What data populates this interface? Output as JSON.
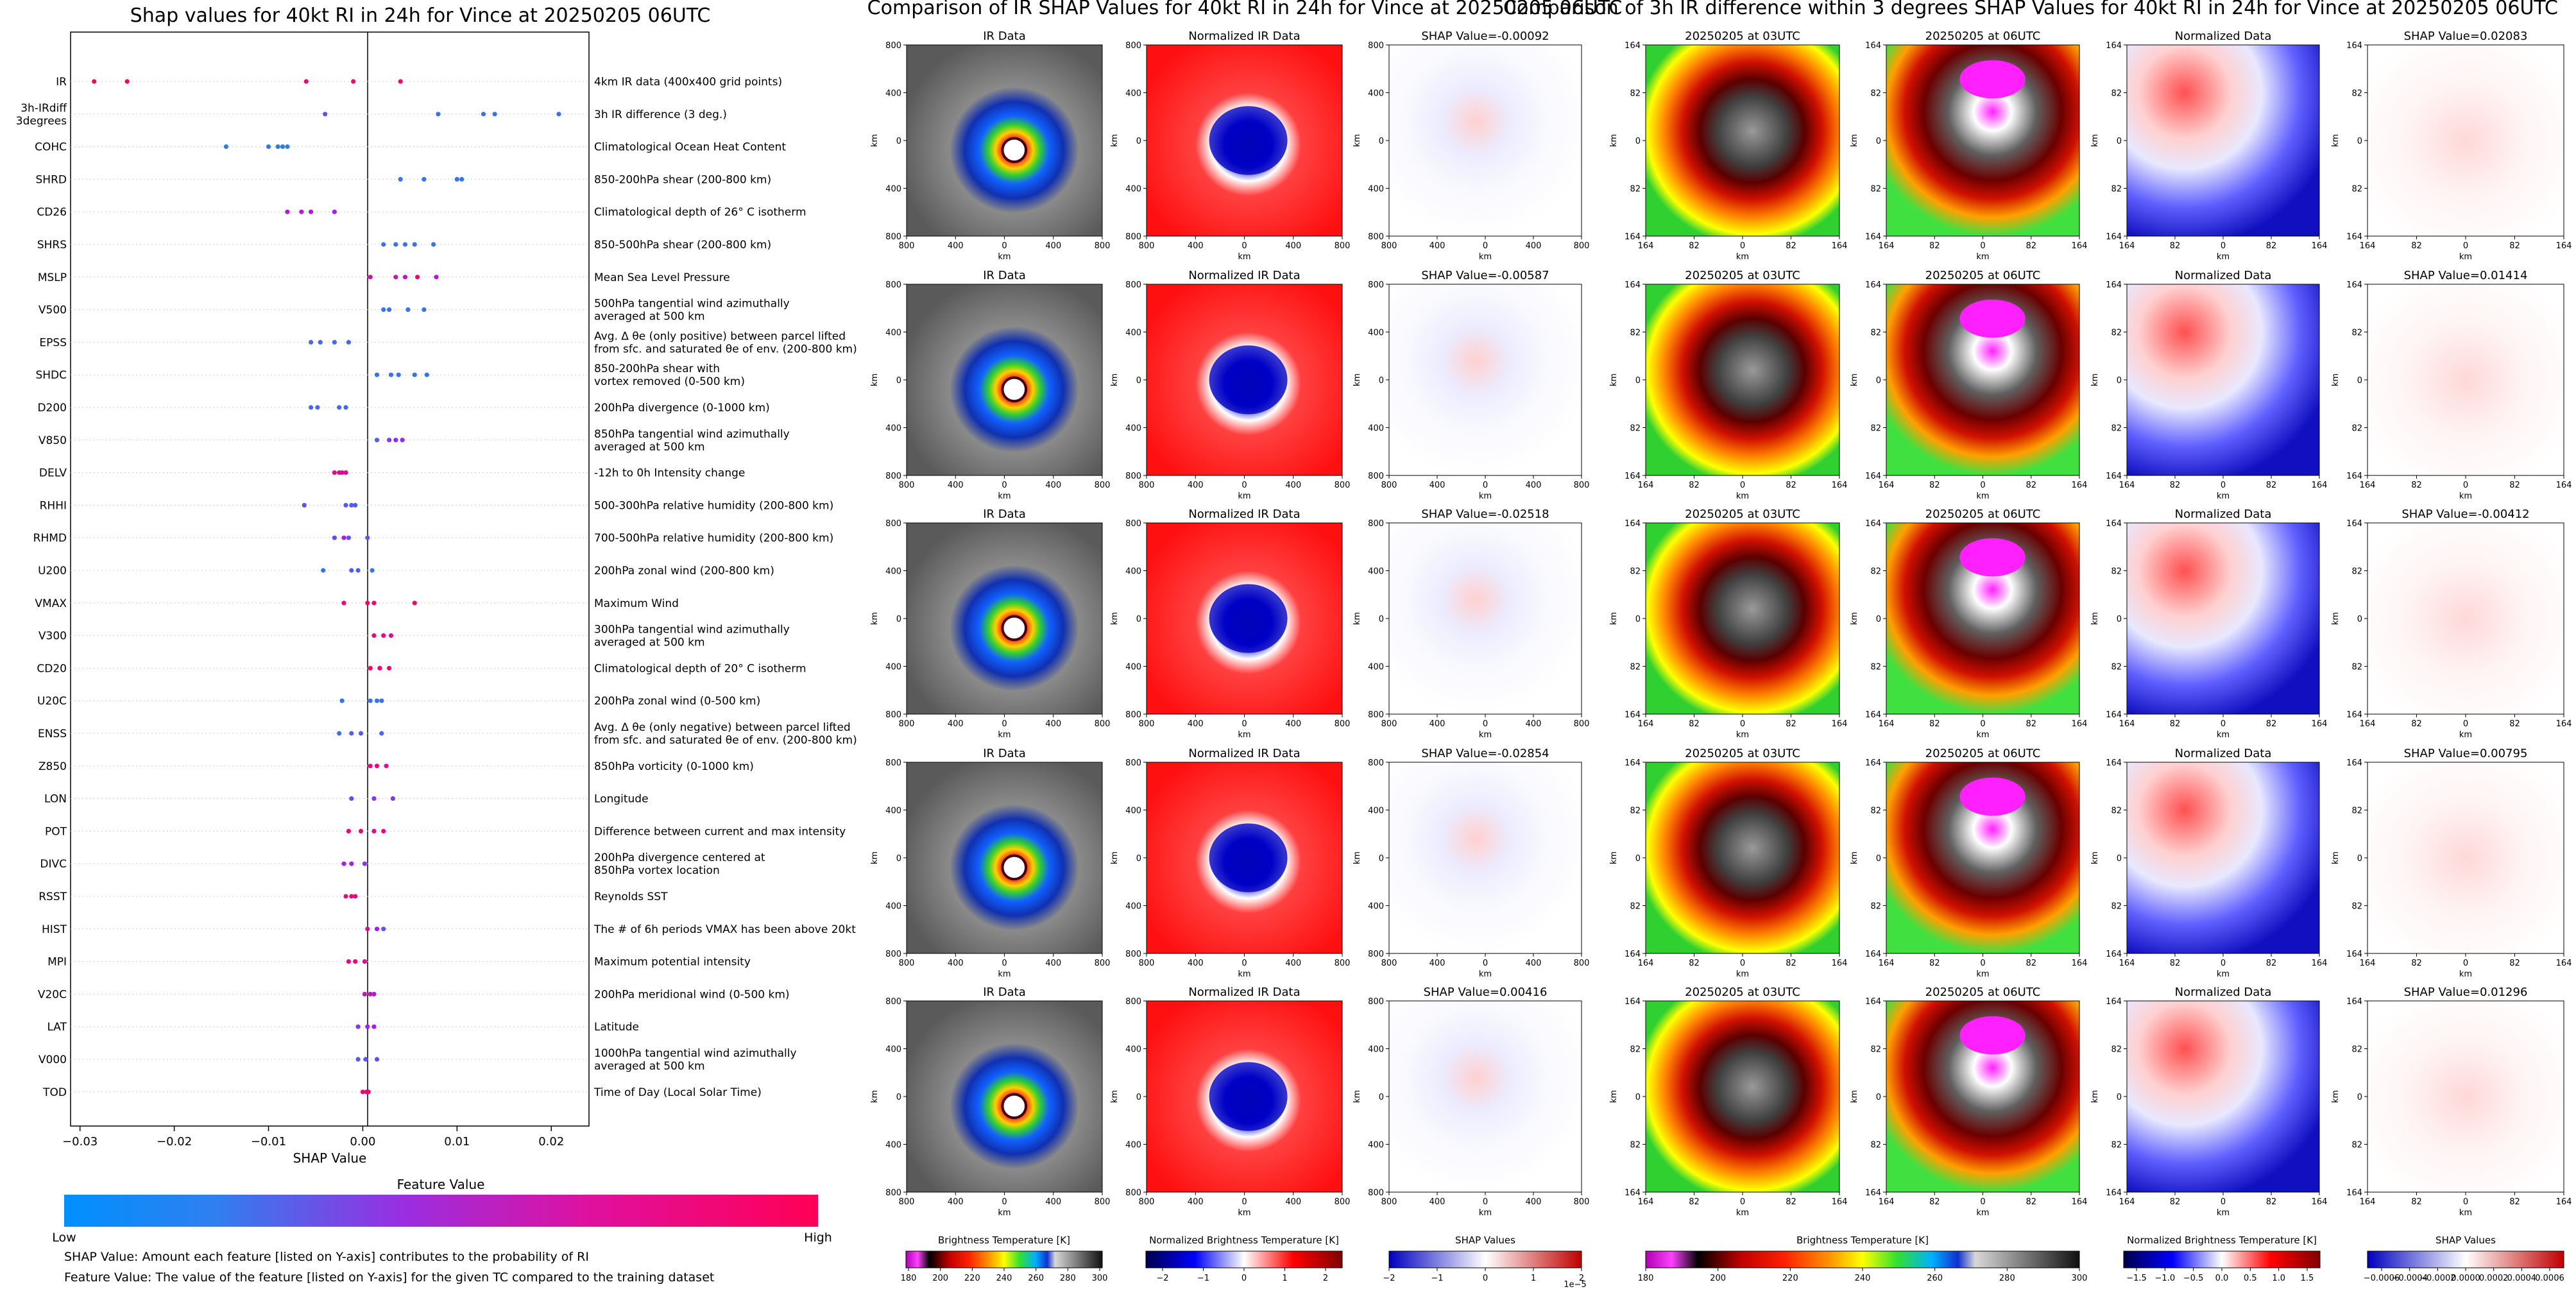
{
  "left_panel": {
    "title": "Shap values for 40kt RI in 24h for Vince at 20250205 06UTC",
    "xlabel": "SHAP Value",
    "colorbar_title": "Feature Value",
    "colorbar_low": "Low",
    "colorbar_high": "High",
    "note1": "SHAP Value: Amount each feature [listed on Y-axis] contributes to the probability of RI",
    "note2": "Feature Value: The value of the feature [listed on Y-axis] for the given TC compared to the training dataset"
  },
  "middle_panel": {
    "title": "Comparison of IR SHAP Values for 40kt RI in 24h for Vince at 20250205 06UTC",
    "col_titles": [
      "IR Data",
      "Normalized IR Data"
    ],
    "shap_titles": [
      "SHAP Value=-0.00092",
      "SHAP Value=-0.00587",
      "SHAP Value=-0.02518",
      "SHAP Value=-0.02854",
      "SHAP Value=0.00416"
    ],
    "axis_label": "km",
    "cb1_label": "Brightness Temperature [K]",
    "cb1_ticks": [
      "180",
      "200",
      "220",
      "240",
      "260",
      "280",
      "300"
    ],
    "cb2_label": "Normalized Brightness Temperature [K]",
    "cb2_ticks": [
      "−2",
      "−1",
      "0",
      "1",
      "2"
    ],
    "cb3_label": "SHAP Values",
    "cb3_ticks": [
      "−2",
      "−1",
      "0",
      "1",
      "2"
    ],
    "cb3_exp": "1e−5"
  },
  "right_panel": {
    "title": "Comparison of 3h IR difference within 3 degrees SHAP Values for 40kt RI in 24h for Vince at 20250205 06UTC",
    "col_titles": [
      "20250205 at 03UTC",
      "20250205 at 06UTC",
      "Normalized Data"
    ],
    "shap_titles": [
      "SHAP Value=0.02083",
      "SHAP Value=0.01414",
      "SHAP Value=-0.00412",
      "SHAP Value=0.00795",
      "SHAP Value=0.01296"
    ],
    "axis_label": "km",
    "cb1_label": "Brightness Temperature [K]",
    "cb1_ticks": [
      "180",
      "200",
      "220",
      "240",
      "260",
      "280",
      "300"
    ],
    "cb2_label": "Normalized Brightness Temperature [K]",
    "cb2_ticks": [
      "−1.5",
      "−1.0",
      "−0.5",
      "0.0",
      "0.5",
      "1.0",
      "1.5"
    ],
    "cb3_label": "SHAP Values",
    "cb3_ticks": [
      "−0.0006",
      "−0.0004",
      "−0.0002",
      "0.0000",
      "0.0002",
      "0.0004",
      "0.0006"
    ]
  },
  "chart_data": [
    {
      "type": "scatter",
      "title": "Shap values for 40kt RI in 24h for Vince at 20250205 06UTC",
      "xlabel": "SHAP Value",
      "xlim": [
        -0.031,
        0.024
      ],
      "xticks": [
        "−0.03",
        "−0.02",
        "−0.01",
        "0.00",
        "0.01",
        "0.02"
      ],
      "xtick_values": [
        -0.03,
        -0.02,
        -0.01,
        0.0,
        0.01,
        0.02
      ],
      "colors": {
        "low": "#1e88e5",
        "mid": "#a020f0",
        "high": "#ff0052"
      },
      "features": [
        {
          "code": "IR",
          "desc": [
            "4km IR data (400x400 grid points)"
          ],
          "points": [
            [
              -0.0285,
              0.98
            ],
            [
              -0.025,
              0.95
            ],
            [
              -0.006,
              0.9
            ],
            [
              -0.001,
              0.9
            ],
            [
              0.004,
              0.92
            ]
          ]
        },
        {
          "code": "3h-IRdiff 3degrees",
          "desc": [
            "3h IR difference (3 deg.)"
          ],
          "points": [
            [
              -0.004,
              0.3
            ],
            [
              0.008,
              0.1
            ],
            [
              0.0128,
              0.1
            ],
            [
              0.014,
              0.1
            ],
            [
              0.0208,
              0.1
            ]
          ]
        },
        {
          "code": "COHC",
          "desc": [
            "Climatological Ocean Heat Content"
          ],
          "points": [
            [
              -0.0145,
              0.05
            ],
            [
              -0.01,
              0.05
            ],
            [
              -0.009,
              0.05
            ],
            [
              -0.0085,
              0.05
            ],
            [
              -0.008,
              0.05
            ]
          ]
        },
        {
          "code": "SHRD",
          "desc": [
            "850-200hPa shear (200-800 km)"
          ],
          "points": [
            [
              0.004,
              0.1
            ],
            [
              0.0065,
              0.1
            ],
            [
              0.01,
              0.1
            ],
            [
              0.0105,
              0.1
            ]
          ]
        },
        {
          "code": "CD26",
          "desc": [
            "Climatological depth of 26° C isotherm"
          ],
          "points": [
            [
              -0.008,
              0.55
            ],
            [
              -0.0065,
              0.6
            ],
            [
              -0.0055,
              0.6
            ],
            [
              -0.003,
              0.5
            ]
          ]
        },
        {
          "code": "SHRS",
          "desc": [
            "850-500hPa shear (200-800 km)"
          ],
          "points": [
            [
              0.0022,
              0.1
            ],
            [
              0.0035,
              0.1
            ],
            [
              0.0045,
              0.1
            ],
            [
              0.0055,
              0.1
            ],
            [
              0.0075,
              0.1
            ]
          ]
        },
        {
          "code": "MSLP",
          "desc": [
            "Mean Sea Level Pressure"
          ],
          "points": [
            [
              0.0008,
              0.75
            ],
            [
              0.0035,
              0.7
            ],
            [
              0.0045,
              0.65
            ],
            [
              0.0058,
              0.9
            ],
            [
              0.0078,
              0.6
            ]
          ]
        },
        {
          "code": "V500",
          "desc": [
            "500hPa tangential wind azimuthally",
            "averaged at 500 km"
          ],
          "points": [
            [
              0.0022,
              0.1
            ],
            [
              0.0028,
              0.1
            ],
            [
              0.0048,
              0.1
            ],
            [
              0.0065,
              0.1
            ]
          ]
        },
        {
          "code": "EPSS",
          "desc": [
            "Avg. Δ θe (only positive) between parcel lifted",
            "from sfc. and saturated θe of env. (200-800 km)"
          ],
          "points": [
            [
              -0.0055,
              0.15
            ],
            [
              -0.0045,
              0.15
            ],
            [
              -0.003,
              0.15
            ],
            [
              -0.0015,
              0.15
            ]
          ]
        },
        {
          "code": "SHDC",
          "desc": [
            "850-200hPa shear with",
            "vortex removed (0-500 km)"
          ],
          "points": [
            [
              0.0015,
              0.1
            ],
            [
              0.003,
              0.1
            ],
            [
              0.0038,
              0.1
            ],
            [
              0.0055,
              0.1
            ],
            [
              0.0068,
              0.1
            ]
          ]
        },
        {
          "code": "D200",
          "desc": [
            "200hPa divergence (0-1000 km)"
          ],
          "points": [
            [
              -0.0055,
              0.15
            ],
            [
              -0.0048,
              0.15
            ],
            [
              -0.0025,
              0.15
            ],
            [
              -0.0018,
              0.15
            ]
          ]
        },
        {
          "code": "V850",
          "desc": [
            "850hPa tangential wind azimuthally",
            "averaged at 500 km"
          ],
          "points": [
            [
              0.0015,
              0.2
            ],
            [
              0.0028,
              0.4
            ],
            [
              0.0035,
              0.45
            ],
            [
              0.0042,
              0.45
            ]
          ]
        },
        {
          "code": "DELV",
          "desc": [
            "-12h to 0h Intensity change"
          ],
          "points": [
            [
              -0.003,
              0.8
            ],
            [
              -0.0025,
              0.8
            ],
            [
              -0.0022,
              0.8
            ],
            [
              -0.0018,
              0.8
            ]
          ]
        },
        {
          "code": "RHHI",
          "desc": [
            "500-300hPa relative humidity (200-800 km)"
          ],
          "points": [
            [
              -0.0062,
              0.3
            ],
            [
              -0.0018,
              0.2
            ],
            [
              -0.0012,
              0.2
            ],
            [
              -0.0008,
              0.2
            ]
          ]
        },
        {
          "code": "RHMD",
          "desc": [
            "700-500hPa relative humidity (200-800 km)"
          ],
          "points": [
            [
              -0.003,
              0.3
            ],
            [
              -0.002,
              0.5
            ],
            [
              -0.0015,
              0.3
            ],
            [
              0.0005,
              0.2
            ]
          ]
        },
        {
          "code": "U200",
          "desc": [
            "200hPa zonal wind (200-800 km)"
          ],
          "points": [
            [
              -0.0042,
              0.1
            ],
            [
              -0.0012,
              0.2
            ],
            [
              -0.0005,
              0.2
            ],
            [
              0.001,
              0.1
            ]
          ]
        },
        {
          "code": "VMAX",
          "desc": [
            "Maximum Wind"
          ],
          "points": [
            [
              -0.002,
              0.85
            ],
            [
              0.0005,
              0.9
            ],
            [
              0.0012,
              0.9
            ],
            [
              0.0055,
              0.9
            ]
          ]
        },
        {
          "code": "V300",
          "desc": [
            "300hPa tangential wind azimuthally",
            "averaged at 500 km"
          ],
          "points": [
            [
              0.0012,
              0.85
            ],
            [
              0.0022,
              0.8
            ],
            [
              0.003,
              0.75
            ]
          ]
        },
        {
          "code": "CD20",
          "desc": [
            "Climatological depth of 20° C isotherm"
          ],
          "points": [
            [
              0.0008,
              0.95
            ],
            [
              0.0018,
              0.9
            ],
            [
              0.0028,
              0.85
            ]
          ]
        },
        {
          "code": "U20C",
          "desc": [
            "200hPa zonal wind (0-500 km)"
          ],
          "points": [
            [
              -0.0022,
              0.1
            ],
            [
              0.0008,
              0.1
            ],
            [
              0.0015,
              0.1
            ],
            [
              0.002,
              0.1
            ]
          ]
        },
        {
          "code": "ENSS",
          "desc": [
            "Avg. Δ θe (only negative) between parcel lifted",
            "from sfc. and saturated θe of env. (200-800 km)"
          ],
          "points": [
            [
              -0.0025,
              0.1
            ],
            [
              -0.0012,
              0.2
            ],
            [
              -0.0002,
              0.2
            ],
            [
              0.002,
              0.15
            ]
          ]
        },
        {
          "code": "Z850",
          "desc": [
            "850hPa vorticity (0-1000 km)"
          ],
          "points": [
            [
              0.0008,
              0.85
            ],
            [
              0.0015,
              0.85
            ],
            [
              0.0025,
              0.8
            ]
          ]
        },
        {
          "code": "LON",
          "desc": [
            "Longitude"
          ],
          "points": [
            [
              -0.0012,
              0.3
            ],
            [
              0.0012,
              0.4
            ],
            [
              0.0032,
              0.4
            ]
          ]
        },
        {
          "code": "POT",
          "desc": [
            "Difference between current and max intensity"
          ],
          "points": [
            [
              -0.0015,
              0.9
            ],
            [
              -0.0002,
              0.85
            ],
            [
              0.0012,
              0.8
            ],
            [
              0.0022,
              0.8
            ]
          ]
        },
        {
          "code": "DIVC",
          "desc": [
            "200hPa divergence centered at",
            "850hPa vortex location"
          ],
          "points": [
            [
              -0.002,
              0.5
            ],
            [
              -0.0012,
              0.5
            ],
            [
              0.0002,
              0.4
            ]
          ]
        },
        {
          "code": "RSST",
          "desc": [
            "Reynolds SST"
          ],
          "points": [
            [
              -0.0018,
              0.85
            ],
            [
              -0.0012,
              0.85
            ],
            [
              -0.0008,
              0.85
            ]
          ]
        },
        {
          "code": "HIST",
          "desc": [
            "The # of 6h periods VMAX has been above 20kt"
          ],
          "points": [
            [
              0.0005,
              0.8
            ],
            [
              0.0015,
              0.5
            ],
            [
              0.0022,
              0.3
            ]
          ]
        },
        {
          "code": "MPI",
          "desc": [
            "Maximum potential intensity"
          ],
          "points": [
            [
              -0.0015,
              0.85
            ],
            [
              -0.0008,
              0.85
            ],
            [
              0.0002,
              0.8
            ]
          ]
        },
        {
          "code": "V20C",
          "desc": [
            "200hPa meridional wind (0-500 km)"
          ],
          "points": [
            [
              0.0002,
              0.7
            ],
            [
              0.0008,
              0.65
            ],
            [
              0.0012,
              0.6
            ]
          ]
        },
        {
          "code": "LAT",
          "desc": [
            "Latitude"
          ],
          "points": [
            [
              -0.0005,
              0.4
            ],
            [
              0.0005,
              0.5
            ],
            [
              0.0012,
              0.55
            ]
          ]
        },
        {
          "code": "V000",
          "desc": [
            "1000hPa tangential wind azimuthally",
            "averaged at 500 km"
          ],
          "points": [
            [
              -0.0005,
              0.2
            ],
            [
              0.0003,
              0.25
            ],
            [
              0.0015,
              0.3
            ]
          ]
        },
        {
          "code": "TOD",
          "desc": [
            "Time of Day (Local Solar Time)"
          ],
          "points": [
            [
              0.0,
              0.9
            ],
            [
              0.0004,
              0.9
            ],
            [
              0.0006,
              0.9
            ]
          ]
        }
      ]
    }
  ]
}
